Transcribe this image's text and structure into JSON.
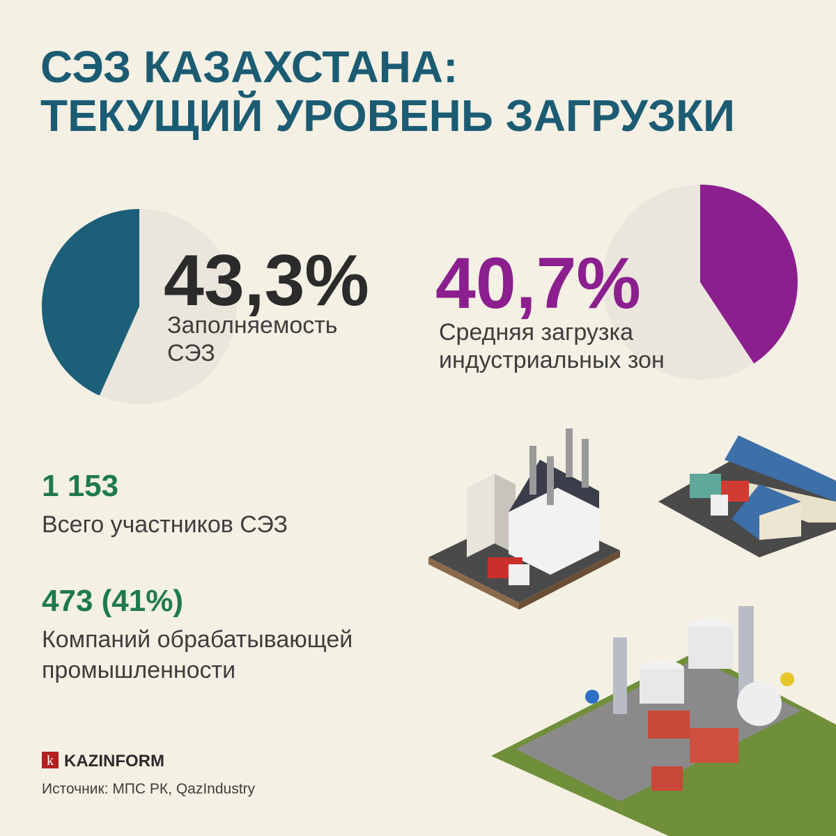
{
  "header": {
    "title_lines": [
      "СЭЗ КАЗАХСТАНА:",
      "ТЕКУЩИЙ УРОВЕНЬ ЗАГРУЗКИ"
    ]
  },
  "pies": [
    {
      "value": 43.3,
      "label": "43,3%",
      "color": "#1c5f78",
      "caption_lines": [
        "Заполняемость",
        "СЭЗ"
      ]
    },
    {
      "value": 40.7,
      "label": "40,7%",
      "color": "#8b1f8e",
      "caption_lines": [
        "Средняя загрузка",
        "индустриальных зон"
      ]
    }
  ],
  "stats": [
    {
      "number": "1 153",
      "caption_lines": [
        "Всего участников СЭЗ"
      ]
    },
    {
      "number": "473 (41%)",
      "caption_lines": [
        "Компаний обрабатывающей",
        "промышленности"
      ]
    }
  ],
  "footer": {
    "logo_letter": "k",
    "brand": "KAZINFORM",
    "source": "Источник: МПС РК, QazIndustry"
  }
}
